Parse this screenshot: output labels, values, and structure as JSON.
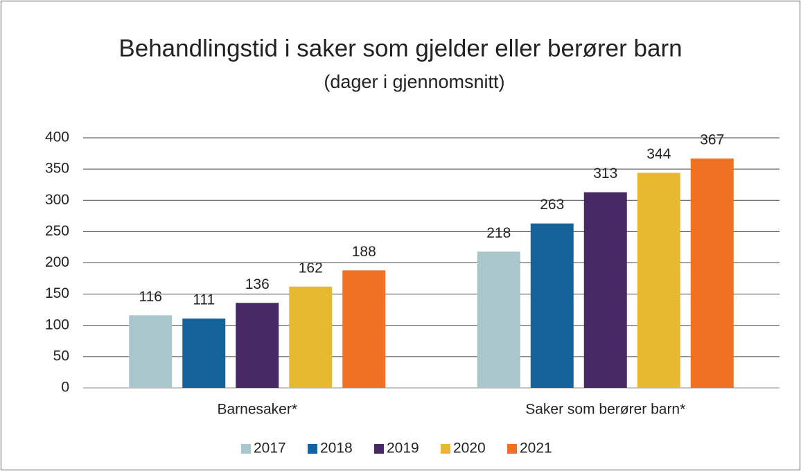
{
  "chart_data": {
    "type": "bar",
    "title": "Behandlingstid i saker som gjelder eller berører barn",
    "subtitle": "(dager i gjennomsnitt)",
    "categories": [
      "Barnesaker*",
      "Saker som berører barn*"
    ],
    "series": [
      {
        "name": "2017",
        "color": "#a9c6cc",
        "values": [
          116,
          218
        ]
      },
      {
        "name": "2018",
        "color": "#16629b",
        "values": [
          111,
          263
        ]
      },
      {
        "name": "2019",
        "color": "#472966",
        "values": [
          136,
          313
        ]
      },
      {
        "name": "2020",
        "color": "#e8b830",
        "values": [
          162,
          344
        ]
      },
      {
        "name": "2021",
        "color": "#f07124",
        "values": [
          188,
          367
        ]
      }
    ],
    "ylim": [
      0,
      400
    ],
    "yticks": [
      0,
      50,
      100,
      150,
      200,
      250,
      300,
      350,
      400
    ],
    "grid": true,
    "legend": "bottom"
  }
}
